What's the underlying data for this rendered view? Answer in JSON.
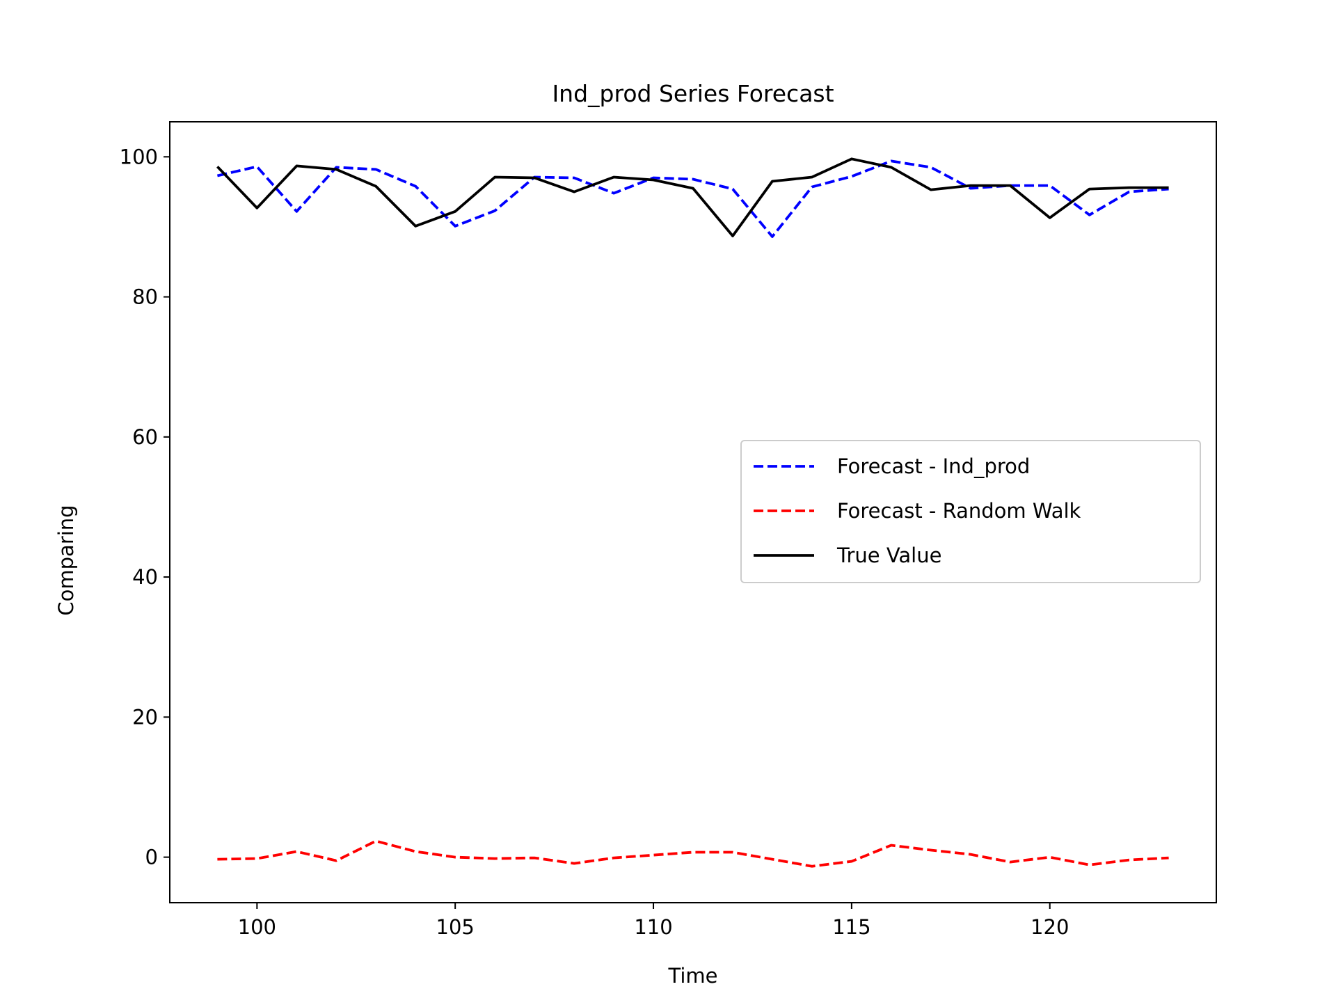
{
  "chart_data": {
    "type": "line",
    "title": "Ind_prod Series Forecast",
    "xlabel": "Time",
    "ylabel": "Comparing",
    "xlim": [
      97.8,
      124.2
    ],
    "ylim": [
      -6.5,
      105
    ],
    "xticks": [
      100,
      105,
      110,
      115,
      120
    ],
    "yticks": [
      0,
      20,
      40,
      60,
      80,
      100
    ],
    "grid": false,
    "legend_position": "center-right",
    "x": [
      99,
      100,
      101,
      102,
      103,
      104,
      105,
      106,
      107,
      108,
      109,
      110,
      111,
      112,
      113,
      114,
      115,
      116,
      117,
      118,
      119,
      120,
      121,
      122,
      123
    ],
    "series": [
      {
        "name": "Forecast - Ind_prod",
        "color": "#0000ff",
        "style": "dashed",
        "values": [
          97.3,
          98.6,
          92.2,
          98.5,
          98.2,
          95.8,
          90.1,
          92.3,
          97.1,
          97.0,
          94.8,
          97.0,
          96.8,
          95.4,
          88.6,
          95.7,
          97.2,
          99.4,
          98.5,
          95.5,
          95.9,
          95.9,
          91.7,
          95.0,
          95.4
        ]
      },
      {
        "name": "Forecast - Random Walk",
        "color": "#ff0000",
        "style": "dashed",
        "values": [
          -0.3,
          -0.2,
          0.8,
          -0.5,
          2.3,
          0.8,
          0.0,
          -0.2,
          -0.1,
          -0.9,
          -0.1,
          0.3,
          0.7,
          0.7,
          -0.3,
          -1.3,
          -0.6,
          1.7,
          1.0,
          0.4,
          -0.7,
          0.0,
          -1.1,
          -0.4,
          -0.1
        ]
      },
      {
        "name": "True Value",
        "color": "#000000",
        "style": "solid",
        "values": [
          98.6,
          92.7,
          98.7,
          98.2,
          95.8,
          90.1,
          92.2,
          97.1,
          97.0,
          95.0,
          97.1,
          96.7,
          95.5,
          88.7,
          96.5,
          97.1,
          99.7,
          98.5,
          95.3,
          95.9,
          95.9,
          91.3,
          95.4,
          95.6,
          95.6
        ]
      }
    ]
  }
}
